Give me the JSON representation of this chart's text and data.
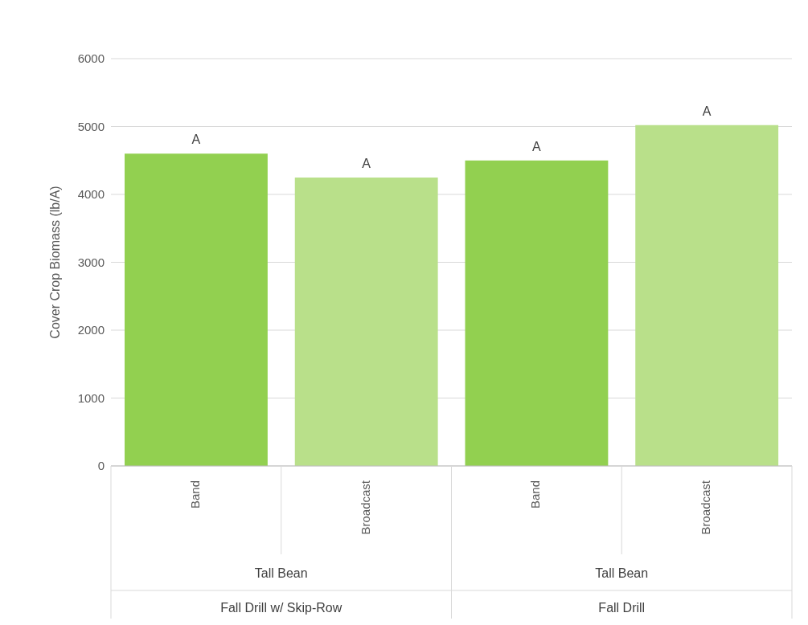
{
  "chart_data": {
    "type": "bar",
    "ylabel": "Cover Crop Biomass (lb/A)",
    "categories": [
      "Band",
      "Broadcast",
      "Band",
      "Broadcast"
    ],
    "values": [
      4600,
      4250,
      4500,
      5020
    ],
    "colors": [
      "#92d050",
      "#b9e08a",
      "#92d050",
      "#b9e08a"
    ],
    "value_labels": [
      "A",
      "A",
      "A",
      "A"
    ],
    "annotations": [
      "Tall Bean",
      "Fall Drill w/ Skip-Row",
      "Tall Bean",
      "Fall Drill"
    ],
    "ylim": [
      0,
      6000
    ],
    "yticks": [
      0,
      1000,
      2000,
      3000,
      4000,
      5000,
      6000
    ],
    "grid": "y"
  }
}
